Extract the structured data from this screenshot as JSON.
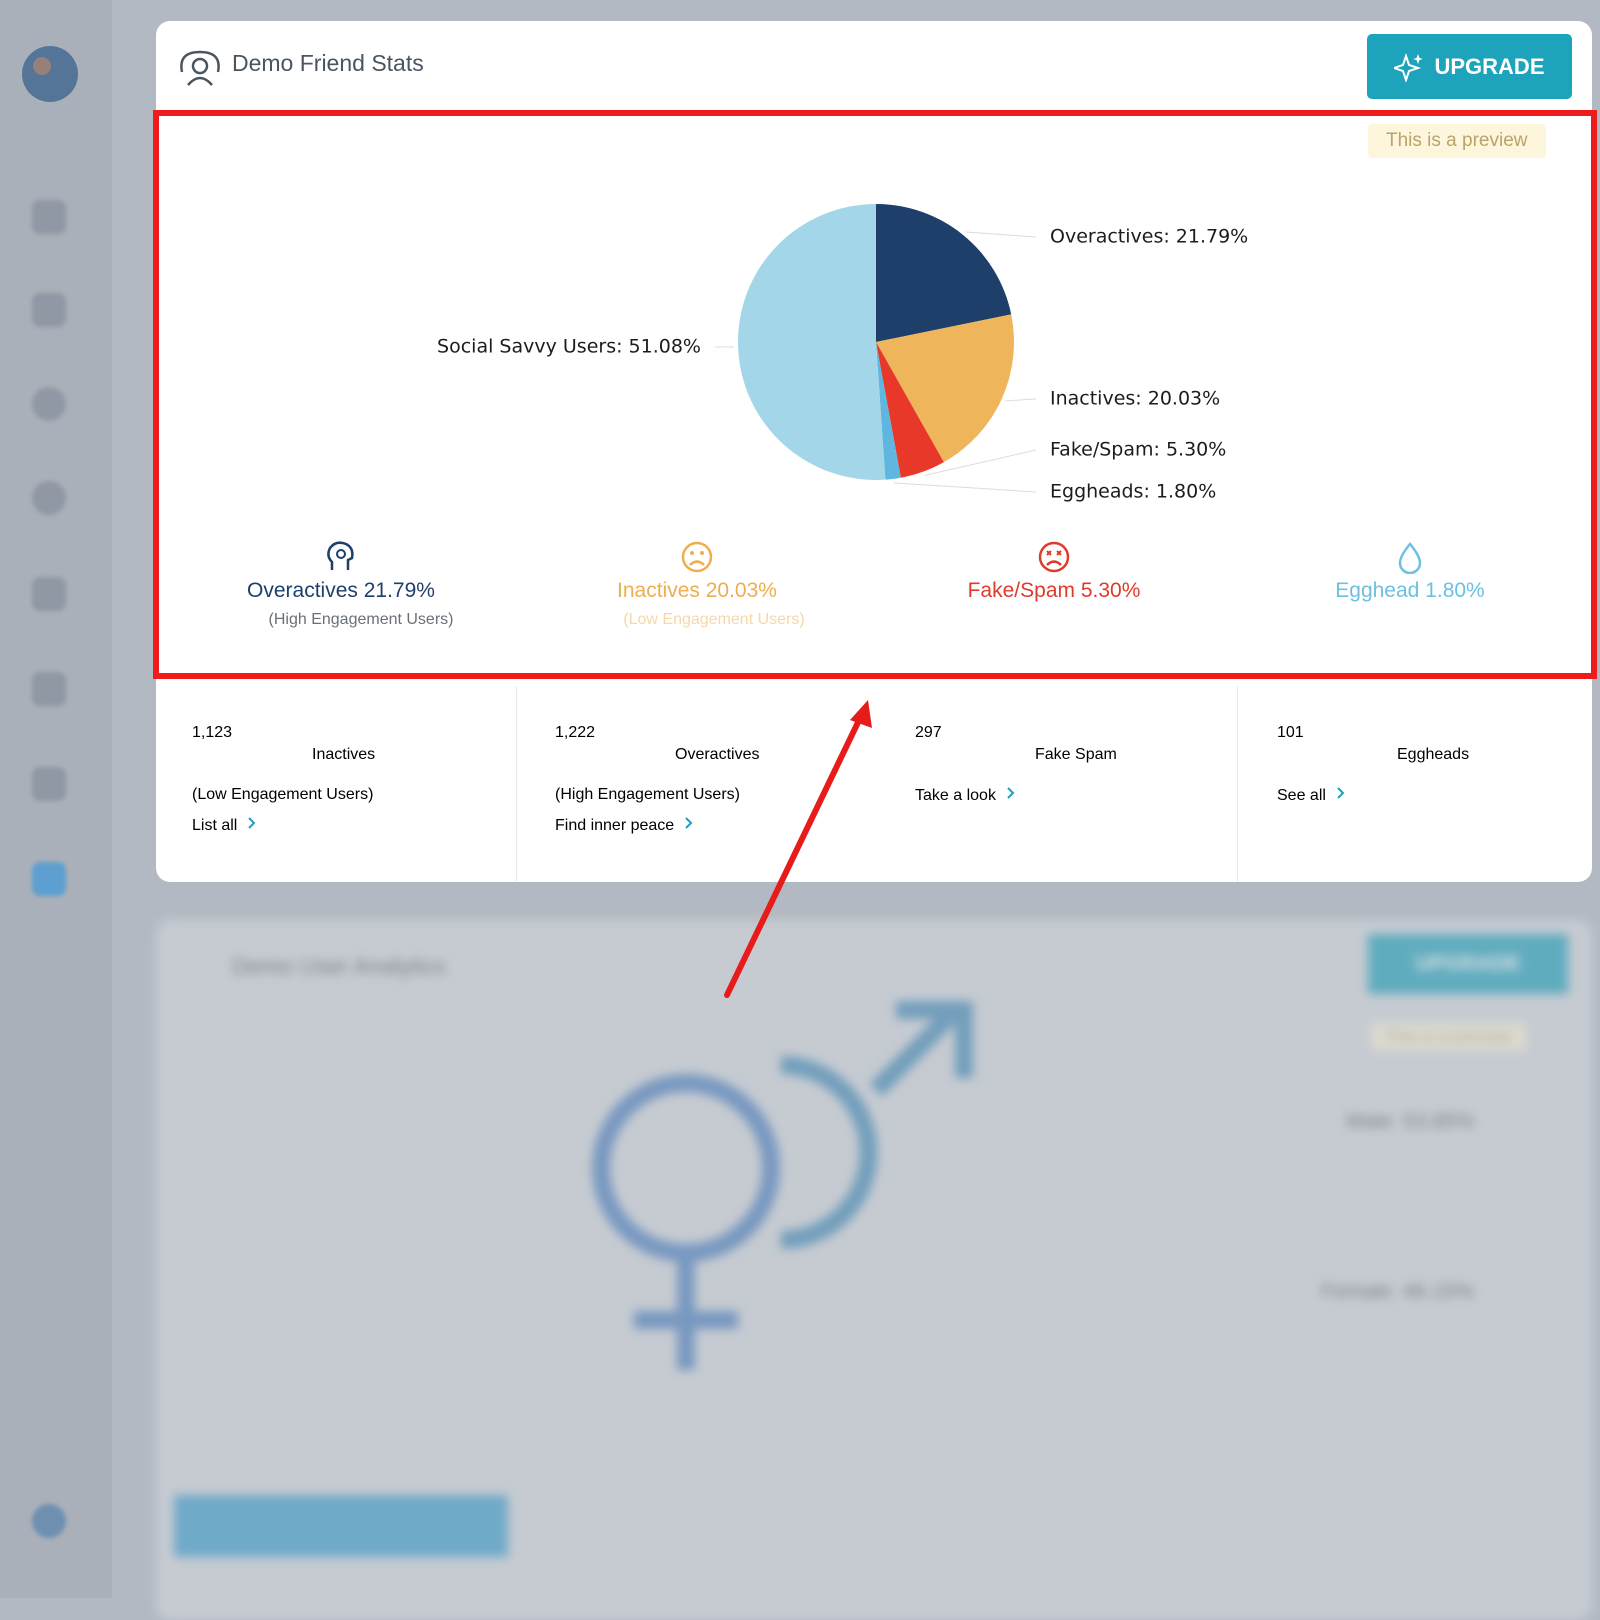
{
  "header": {
    "title": "Demo Friend Stats",
    "button": "UPGRADE"
  },
  "preview_label": "This is a preview",
  "chart_data": {
    "type": "pie",
    "values": [
      21.79,
      20.03,
      5.3,
      1.8,
      51.08
    ],
    "value_labels": [
      "Overactives: 21.79%",
      "Inactives: 20.03%",
      "Fake/Spam: 5.30%",
      "Eggheads: 1.80%",
      "Social Savvy Users: 51.08%"
    ],
    "colors": [
      "#1f3f6b",
      "#efb55a",
      "#e8382a",
      "#5fb7df",
      "#a3d6e9"
    ]
  },
  "summary": [
    {
      "label": "Overactives 21.79%",
      "note": "(High Engagement Users)"
    },
    {
      "label": "Inactives 20.03%",
      "note": "(Low Engagement Users)"
    },
    {
      "label": "Fake/Spam 5.30%"
    },
    {
      "label": "Egghead 1.80%"
    }
  ],
  "stats": [
    {
      "number": "1,123",
      "label": "Inactives",
      "note": "(Low Engagement Users)",
      "link": "List all"
    },
    {
      "number": "1,222",
      "label": "Overactives",
      "note": "(High Engagement Users)",
      "link": "Find inner peace"
    },
    {
      "number": "297",
      "label": "Fake Spam",
      "link": "Take a look"
    },
    {
      "number": "101",
      "label": "Eggheads",
      "link": "See all"
    }
  ],
  "background_card": {
    "title": "Demo User Analytics",
    "button": "UPGRADE",
    "preview_label": "This is a preview",
    "labels": [
      "Male: 53.85%",
      "Female: 46.15%"
    ]
  }
}
